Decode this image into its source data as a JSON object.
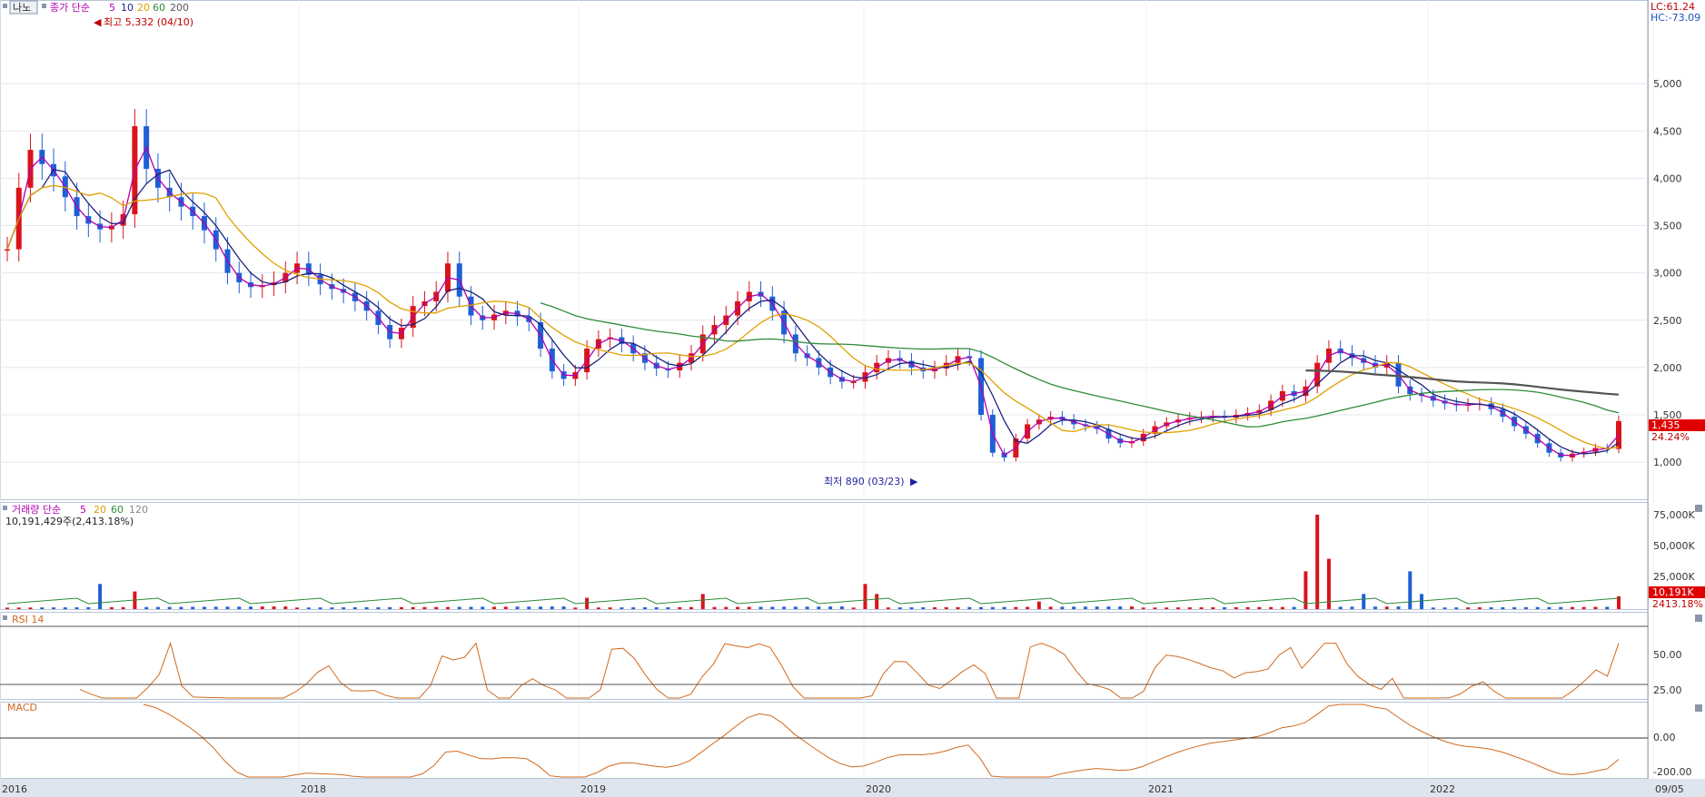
{
  "header": {
    "nano_button": "나노",
    "price_legend": {
      "prefix": "종가 단순",
      "periods": [
        "5",
        "10",
        "20",
        "60",
        "200"
      ],
      "colors": [
        "#b100b1",
        "#1a237e",
        "#e0a000",
        "#2e8b3a",
        "#555555"
      ]
    },
    "lc_label": "LC:61.24",
    "hc_label": "HC:-73.09"
  },
  "annotations": {
    "high": "최고 5,332 (04/10)",
    "low": "최저 890 (03/23)"
  },
  "price_axis": {
    "ticks": [
      "5,000",
      "4,500",
      "4,000",
      "3,500",
      "3,000",
      "2,500",
      "2,000",
      "1,500",
      "1,000"
    ],
    "current_price": "1,435",
    "change_pct": "24.24%"
  },
  "volume_panel": {
    "legend_prefix": "거래량 단순",
    "periods": [
      "5",
      "20",
      "60",
      "120"
    ],
    "colors": [
      "#b100b1",
      "#e0a000",
      "#2e8b3a",
      "#888888"
    ],
    "current_text": "10,191,429주(2,413.18%)",
    "axis_ticks": [
      "75,000K",
      "50,000K",
      "25,000K"
    ],
    "current_badge": "10,191K",
    "current_pct": "2413.18%"
  },
  "rsi_panel": {
    "title": "RSI 14",
    "axis_ticks": [
      "50.00",
      "25.00"
    ]
  },
  "macd_panel": {
    "title": "MACD",
    "axis_ticks": [
      "0.00",
      "-200.00"
    ]
  },
  "x_axis": {
    "labels": [
      "2016",
      "2018",
      "2019",
      "2020",
      "2021",
      "2022",
      "09/05"
    ]
  },
  "chart_data": {
    "type": "candlestick",
    "price_range": [
      800,
      5500
    ],
    "last_close": 1435,
    "high": {
      "value": 5332,
      "date": "04/10"
    },
    "low": {
      "value": 890,
      "date": "03/23"
    },
    "close_series": [
      3250,
      3900,
      4300,
      4150,
      4020,
      3800,
      3600,
      3520,
      3460,
      3500,
      3620,
      4550,
      4100,
      3900,
      3800,
      3700,
      3600,
      3450,
      3250,
      3000,
      2900,
      2850,
      2870,
      2900,
      3000,
      3100,
      2980,
      2880,
      2830,
      2790,
      2700,
      2600,
      2450,
      2300,
      2420,
      2650,
      2700,
      2800,
      3100,
      2750,
      2550,
      2500,
      2560,
      2600,
      2540,
      2480,
      2200,
      1960,
      1880,
      1950,
      2200,
      2300,
      2320,
      2250,
      2150,
      2050,
      1990,
      1970,
      2050,
      2150,
      2350,
      2450,
      2550,
      2700,
      2800,
      2750,
      2600,
      2350,
      2150,
      2100,
      2000,
      1900,
      1850,
      1850,
      1950,
      2050,
      2100,
      2070,
      2000,
      1960,
      1990,
      2050,
      2120,
      2100,
      1500,
      1100,
      1050,
      1250,
      1400,
      1450,
      1480,
      1450,
      1400,
      1380,
      1350,
      1250,
      1200,
      1220,
      1300,
      1380,
      1420,
      1450,
      1470,
      1480,
      1490,
      1470,
      1500,
      1520,
      1550,
      1650,
      1750,
      1700,
      1800,
      2050,
      2200,
      2150,
      2100,
      2050,
      2000,
      2050,
      1800,
      1720,
      1700,
      1650,
      1620,
      1600,
      1610,
      1620,
      1560,
      1480,
      1380,
      1300,
      1200,
      1100,
      1050,
      1090,
      1110,
      1150,
      1140,
      1435
    ],
    "ma_series": [
      {
        "name": "5",
        "color": "#b100b1"
      },
      {
        "name": "10",
        "color": "#1a237e"
      },
      {
        "name": "20",
        "color": "#e0a000"
      },
      {
        "name": "60",
        "color": "#2e8b3a"
      },
      {
        "name": "200",
        "color": "#555555"
      }
    ],
    "volume_peak_K": 75000,
    "volume_last_K": 10191,
    "rsi_last": 57,
    "x_labels": [
      "2016",
      "2018",
      "2019",
      "2020",
      "2021",
      "2022",
      "09/05"
    ]
  }
}
